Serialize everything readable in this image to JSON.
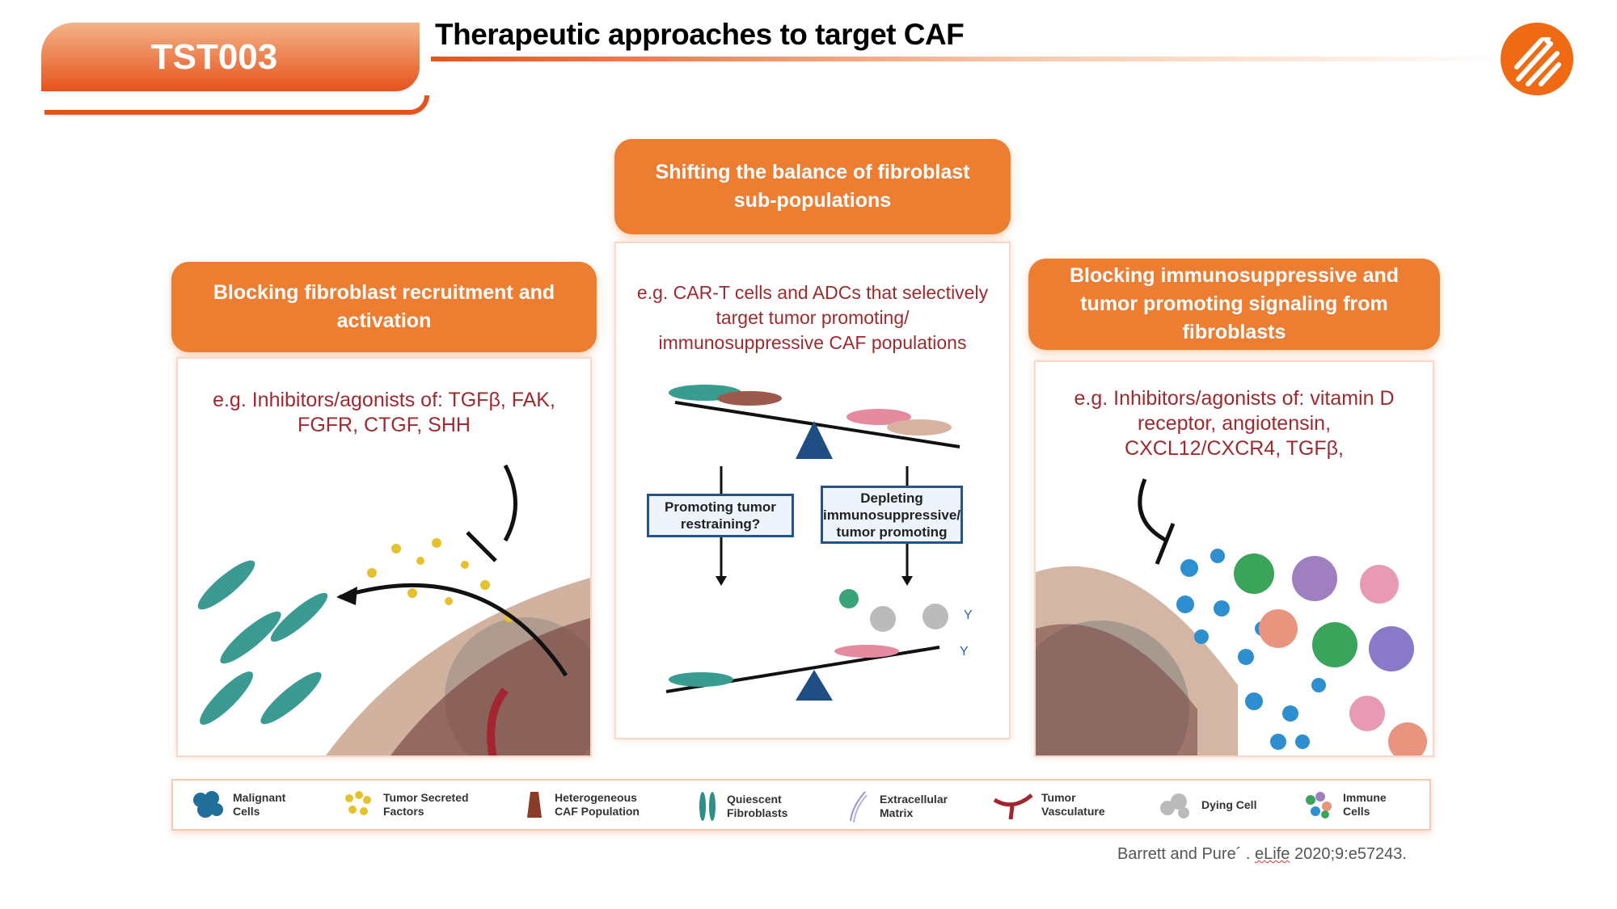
{
  "header": {
    "code": "TST003",
    "title": "Therapeutic approaches to target CAF",
    "accent": "#e6531c"
  },
  "panels": {
    "left": {
      "heading": "Blocking fibroblast recruitment and activation",
      "text": "e.g. Inhibitors/agonists of: TGFβ, FAK, FGFR, CTGF, SHH"
    },
    "center": {
      "heading": "Shifting the balance of fibroblast sub-populations",
      "text": "e.g. CAR-T cells and ADCs that selectively target tumor promoting/ immunosuppressive CAF populations",
      "box_left": "Promoting tumor restraining?",
      "box_right": "Depleting immunosuppressive/ tumor promoting"
    },
    "right": {
      "heading": "Blocking immunosuppressive and tumor promoting signaling from fibroblasts",
      "text": "e.g. Inhibitors/agonists of: vitamin D receptor, angiotensin, CXCL12/CXCR4, TGFβ,"
    }
  },
  "legend": [
    {
      "icon": "malignant-cells-icon",
      "label": "Malignant Cells"
    },
    {
      "icon": "tumor-secreted-factors-icon",
      "label": "Tumor Secreted Factors"
    },
    {
      "icon": "caf-population-icon",
      "label": "Heterogeneous CAF Population"
    },
    {
      "icon": "quiescent-fibroblasts-icon",
      "label": "Quiescent Fibroblasts"
    },
    {
      "icon": "extracellular-matrix-icon",
      "label": "Extracellular Matrix"
    },
    {
      "icon": "tumor-vasculature-icon",
      "label": "Tumor Vasculature"
    },
    {
      "icon": "dying-cell-icon",
      "label": "Dying Cell"
    },
    {
      "icon": "immune-cells-icon",
      "label": "Immune Cells"
    }
  ],
  "citation": {
    "authors": "Barrett and Pure´ . ",
    "journal": "eLife",
    "rest": " 2020;9:e57243."
  }
}
